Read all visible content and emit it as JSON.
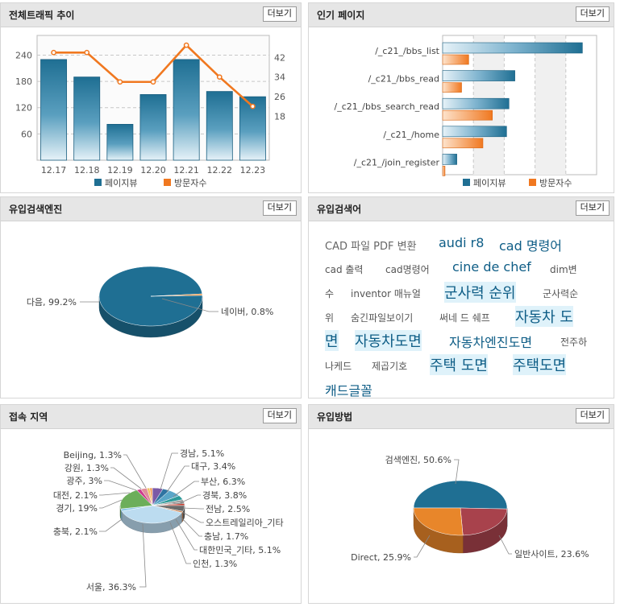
{
  "panels": {
    "traffic": {
      "title": "전체트래픽 추이",
      "more": "더보기"
    },
    "popular": {
      "title": "인기 페이지",
      "more": "더보기"
    },
    "engines": {
      "title": "유입검색엔진",
      "more": "더보기"
    },
    "keywords": {
      "title": "유입검색어",
      "more": "더보기"
    },
    "regions": {
      "title": "접속 지역",
      "more": "더보기"
    },
    "methods": {
      "title": "유입방법",
      "more": "더보기"
    }
  },
  "colors": {
    "pageview": "#1f6f93",
    "visitor": "#f07820"
  },
  "chart_data": [
    {
      "type": "bar",
      "categories": [
        "12.17",
        "12.18",
        "12.19",
        "12.20",
        "12.21",
        "12.22",
        "12.23"
      ],
      "series": [
        {
          "name": "페이지뷰",
          "axis": "left",
          "values": [
            230,
            190,
            82,
            150,
            230,
            157,
            145
          ]
        },
        {
          "name": "방문자수",
          "axis": "right",
          "type": "line",
          "values": [
            44,
            44,
            32,
            32,
            47,
            34,
            22
          ]
        }
      ],
      "ylim": [
        0,
        285
      ],
      "y2lim": [
        0,
        51
      ],
      "yticks": [
        60,
        120,
        180,
        240
      ],
      "y2ticks": [
        18,
        26,
        34,
        42
      ],
      "legend": [
        "페이지뷰",
        "방문자수"
      ],
      "legend_position": "bottom"
    },
    {
      "type": "bar",
      "orientation": "horizontal",
      "categories": [
        "/_c21_/bbs_list",
        "/_c21_/bbs_read",
        "/_c21_/bbs_search_read",
        "/_c21_/home",
        "/_c21_/join_register"
      ],
      "series": [
        {
          "name": "페이지뷰",
          "values": [
            118,
            61,
            56,
            54,
            12
          ]
        },
        {
          "name": "방문자수",
          "values": [
            22,
            16,
            42,
            34,
            2
          ]
        }
      ],
      "xlim": [
        0,
        130
      ],
      "legend": [
        "페이지뷰",
        "방문자수"
      ],
      "legend_position": "bottom"
    },
    {
      "type": "pie",
      "slices": [
        {
          "label": "다음",
          "value": 99.2,
          "color": "#1f6f93"
        },
        {
          "label": "네이버",
          "value": 0.8,
          "color": "#e8862a"
        }
      ],
      "labels": [
        "다음, 99.2%",
        "네이버, 0.8%"
      ]
    },
    {
      "type": "pie",
      "slices": [
        {
          "label": "경남",
          "value": 5.1,
          "color": "#7b5aa6"
        },
        {
          "label": "대구",
          "value": 3.4,
          "color": "#2f74a2"
        },
        {
          "label": "부산",
          "value": 6.3,
          "color": "#5aa6c8"
        },
        {
          "label": "경북",
          "value": 3.8,
          "color": "#2d9a9a"
        },
        {
          "label": "전남",
          "value": 2.5,
          "color": "#a0a0a0"
        },
        {
          "label": "오스트레일리아_기타",
          "value": 1.0,
          "color": "#333333"
        },
        {
          "label": "충남",
          "value": 1.7,
          "color": "#c0392b"
        },
        {
          "label": "대한민국_기타",
          "value": 5.1,
          "color": "#6a6a6a"
        },
        {
          "label": "인천",
          "value": 1.3,
          "color": "#d08a5a"
        },
        {
          "label": "서울",
          "value": 36.3,
          "color": "#bcdcf0"
        },
        {
          "label": "충북",
          "value": 2.1,
          "color": "#8fc9e6"
        },
        {
          "label": "경기",
          "value": 19,
          "color": "#6cae5a"
        },
        {
          "label": "대전",
          "value": 2.1,
          "color": "#cf3b8f"
        },
        {
          "label": "광주",
          "value": 3,
          "color": "#e08e9a"
        },
        {
          "label": "강원",
          "value": 1.3,
          "color": "#f0c060"
        },
        {
          "label": "Beijing",
          "value": 1.3,
          "color": "#f4a460"
        }
      ],
      "labels": [
        "경남, 5.1%",
        "대구, 3.4%",
        "부산, 6.3%",
        "경북, 3.8%",
        "전남, 2.5%",
        "오스트레일리아_기타",
        "충남, 1.7%",
        "대한민국_기타, 5.1%",
        "인천, 1.3%",
        "서울, 36.3%",
        "충북, 2.1%",
        "경기, 19%",
        "대전, 2.1%",
        "광주, 3%",
        "강원, 1.3%",
        "Beijing, 1.3%"
      ]
    },
    {
      "type": "pie",
      "slices": [
        {
          "label": "검색엔진",
          "value": 50.6,
          "color": "#1f6f93"
        },
        {
          "label": "일반사이트",
          "value": 23.6,
          "color": "#a8424c"
        },
        {
          "label": "Direct",
          "value": 25.9,
          "color": "#e8862a"
        }
      ],
      "labels": [
        "검색엔진, 50.6%",
        "일반사이트, 23.6%",
        "Direct, 25.9%"
      ]
    }
  ],
  "keywords": [
    {
      "text": "CAD 파일 PDF 변환",
      "size": 2
    },
    {
      "text": "audi r8",
      "size": 3
    },
    {
      "text": "cad 명령어",
      "size": 3
    },
    {
      "text": "cad 출력",
      "size": 1
    },
    {
      "text": "cad명령어",
      "size": 1
    },
    {
      "text": "cine de chef",
      "size": 3
    },
    {
      "text": "dim변",
      "size": 1
    },
    {
      "text": "수",
      "size": 1
    },
    {
      "text": "inventor 매뉴얼",
      "size": 1
    },
    {
      "text": "군사력 순위",
      "size": 4
    },
    {
      "text": "군사력순",
      "size": 1
    },
    {
      "text": "위",
      "size": 1
    },
    {
      "text": "숨긴파일보이기",
      "size": 1
    },
    {
      "text": "써네 드 쉐프",
      "size": 1
    },
    {
      "text": "자동차 도",
      "size": 4
    },
    {
      "text": "면",
      "size": 4
    },
    {
      "text": "자동차도면",
      "size": 4
    },
    {
      "text": "자동차엔진도면",
      "size": 3
    },
    {
      "text": "전주하",
      "size": 1
    },
    {
      "text": "나케드",
      "size": 1
    },
    {
      "text": "제곱기호",
      "size": 1
    },
    {
      "text": "주택 도면",
      "size": 4
    },
    {
      "text": "주택도면",
      "size": 4
    },
    {
      "text": "캐드글꼴",
      "size": 3
    }
  ]
}
